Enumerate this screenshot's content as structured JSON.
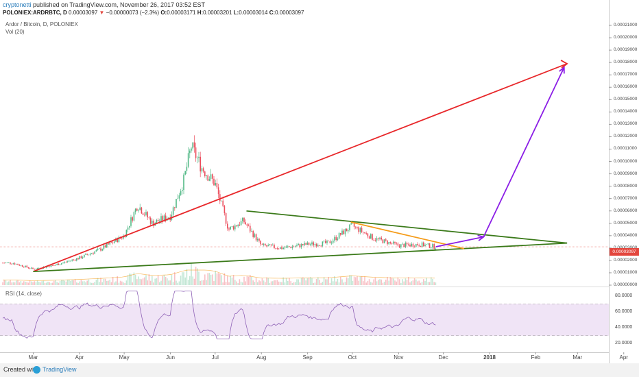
{
  "header": {
    "author": "cryptonetti",
    "published": "published on TradingView.com, November 26, 2017 03:52 EST",
    "symbol": "POLONIEX:ARDRBTC, D",
    "last": "0.00003097",
    "arrow": "▼",
    "change": "−0.00000073 (−2.3%)",
    "o_label": "O:",
    "o_value": "0.00003171",
    "h_label": "H:",
    "h_value": "0.00003201",
    "l_label": "L:",
    "l_value": "0.00003014",
    "c_label": "C:",
    "c_value": "0.00003097"
  },
  "legend": {
    "series": "Ardor / Bitcoin, D, POLONIEX",
    "volume": "Vol (20)",
    "rsi": "RSI (14, close)"
  },
  "footer": {
    "created_with": "Created with",
    "brand": "TradingView"
  },
  "colors": {
    "up": "#53b987",
    "down": "#eb4d5c",
    "red_trend": "#e8282b",
    "green_trend": "#3b7a1a",
    "orange_trend": "#f59c1a",
    "purple_arrow": "#8b1ee6",
    "rsi_line": "#8e61b6",
    "rsi_band": "#e9d9f2"
  },
  "chart_data": {
    "type": "candlestick",
    "title": "Ardor / Bitcoin, D, POLONIEX",
    "x_tick_labels": [
      "Mar",
      "Apr",
      "May",
      "Jun",
      "Jul",
      "Aug",
      "Sep",
      "Oct",
      "Nov",
      "Dec",
      "2018",
      "Feb",
      "Mar",
      "Apr"
    ],
    "y_tick_labels": [
      "0.00021000",
      "0.00020000",
      "0.00019000",
      "0.00018000",
      "0.00017000",
      "0.00016000",
      "0.00015000",
      "0.00014000",
      "0.00013000",
      "0.00012000",
      "0.00011000",
      "0.00010000",
      "0.00009000",
      "0.00008000",
      "0.00007000",
      "0.00006000",
      "0.00005000",
      "0.00004000",
      "0.00003000",
      "0.00002000",
      "0.00001000",
      "0.00000000"
    ],
    "y_range": [
      0,
      0.000215
    ],
    "last_price_label": "0.00003097",
    "approx_close_path": {
      "dates": [
        "2017-02-15",
        "2017-03-01",
        "2017-03-15",
        "2017-04-01",
        "2017-04-15",
        "2017-05-01",
        "2017-05-10",
        "2017-05-20",
        "2017-06-01",
        "2017-06-10",
        "2017-06-15",
        "2017-06-22",
        "2017-07-01",
        "2017-07-10",
        "2017-07-20",
        "2017-08-01",
        "2017-08-15",
        "2017-09-01",
        "2017-09-15",
        "2017-10-01",
        "2017-10-15",
        "2017-11-01",
        "2017-11-15",
        "2017-11-26"
      ],
      "close": [
        1.8e-05,
        1.3e-05,
        1.6e-05,
        2.2e-05,
        2.9e-05,
        4e-05,
        6.5e-05,
        5e-05,
        5.6e-05,
        8.5e-05,
        0.000112,
        9.5e-05,
        8.2e-05,
        4.5e-05,
        5.2e-05,
        3.2e-05,
        3e-05,
        3.3e-05,
        3.4e-05,
        4.8e-05,
        3.8e-05,
        3.2e-05,
        3.3e-05,
        3.1e-05
      ]
    },
    "trendlines": [
      {
        "color": "red",
        "from": [
          "2017-03-01",
          1.1e-05
        ],
        "to": [
          "2018-02-22",
          0.000179
        ]
      },
      {
        "color": "green",
        "from": [
          "2017-03-01",
          1.1e-05
        ],
        "to": [
          "2018-02-22",
          3.4e-05
        ]
      },
      {
        "color": "green",
        "from": [
          "2017-07-22",
          6e-05
        ],
        "to": [
          "2018-02-22",
          3.4e-05
        ]
      },
      {
        "color": "orange",
        "from": [
          "2017-09-30",
          5.1e-05
        ],
        "to": [
          "2017-12-15",
          2.95e-05
        ]
      }
    ],
    "projection_arrows": [
      {
        "from": [
          "2017-11-26",
          3.1e-05
        ],
        "to": [
          "2017-12-28",
          3.9e-05
        ]
      },
      {
        "from": [
          "2017-12-28",
          3.9e-05
        ],
        "to": [
          "2018-02-20",
          0.000176
        ]
      }
    ],
    "rsi": {
      "y_tick_labels": [
        "80.0000",
        "60.0000",
        "40.0000",
        "20.0000"
      ],
      "band": [
        30,
        70
      ],
      "range": [
        10,
        90
      ]
    }
  }
}
